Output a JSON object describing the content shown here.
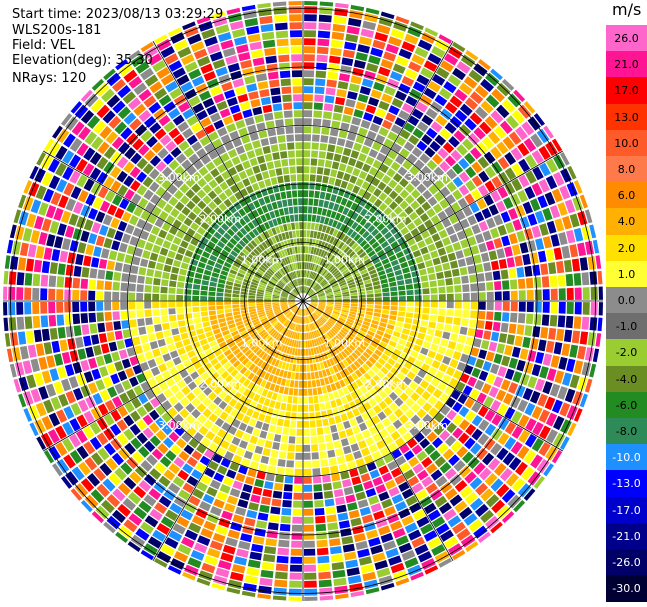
{
  "info": {
    "start_time": "Start time: 2023/08/13 03:29:29",
    "instrument": "WLS200s-181",
    "field": "Field: VEL",
    "elevation": "Elevation(deg): 35.30",
    "nrays": "NRays: 120"
  },
  "colorbar": {
    "unit": "m/s",
    "labels": [
      "26.0",
      "21.0",
      "17.0",
      "13.0",
      "10.0",
      "8.0",
      "6.0",
      "4.0",
      "2.0",
      "1.0",
      "0.0",
      "-1.0",
      "-2.0",
      "-4.0",
      "-6.0",
      "-8.0",
      "-10.0",
      "-13.0",
      "-17.0",
      "-21.0",
      "-26.0",
      "-30.0"
    ],
    "colors": [
      "#ff66cc",
      "#ff1493",
      "#ff0000",
      "#ff3300",
      "#ff5a2a",
      "#ff7a4a",
      "#ff8c00",
      "#ffb000",
      "#ffe000",
      "#ffff33",
      "#8c8c8c",
      "#6e6e6e",
      "#9acd32",
      "#6b8e23",
      "#228b22",
      "#2e8b57",
      "#1e90ff",
      "#0000ff",
      "#0000cd",
      "#00008b",
      "#000066",
      "#000033"
    ]
  },
  "rings": [
    "1.00km",
    "2.00km",
    "3.00km"
  ]
}
